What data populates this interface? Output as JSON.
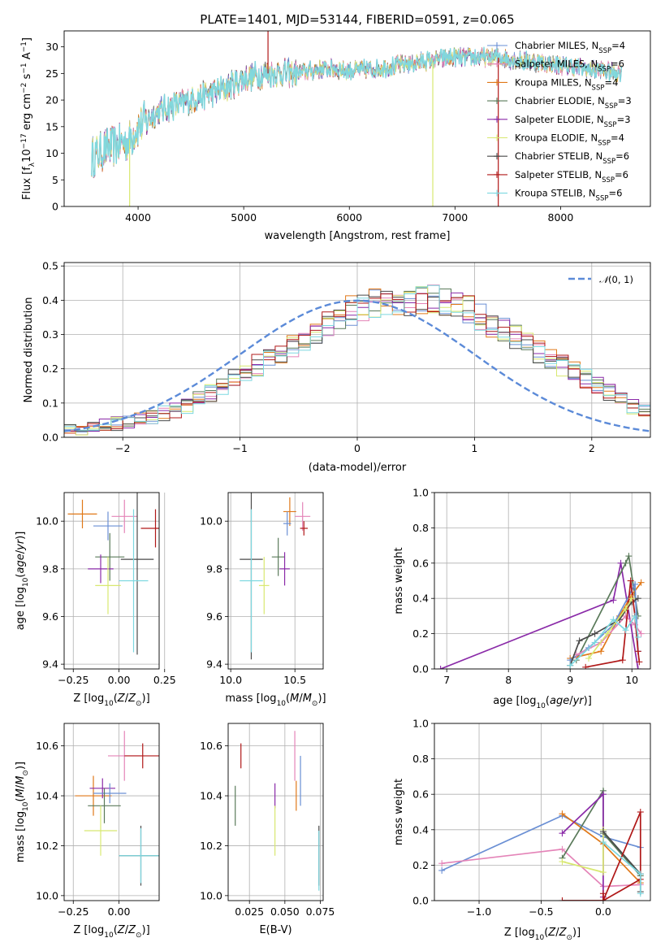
{
  "figure": {
    "title": "PLATE=1401, MJD=53144, FIBERID=0591, z=0.065"
  },
  "colors": {
    "chabrier_miles": "#6a8fd4",
    "salpeter_miles": "#e484b8",
    "kroupa_miles": "#e07818",
    "chabrier_elodie": "#5a7a5a",
    "salpeter_elodie": "#8a2aa8",
    "kroupa_elodie": "#d8e870",
    "chabrier_stelib": "#4a4a4a",
    "salpeter_stelib": "#b01818",
    "kroupa_stelib": "#7dd8e0",
    "normal_curve": "#5b8ad8",
    "grid": "#b0b0b0"
  },
  "chart_data": [
    {
      "id": "spectrum",
      "type": "line",
      "xlabel": "wavelength [Angstrom, rest frame]",
      "ylabel": "Flux [f_λ10^-17 erg cm^-2 s^-1 A^-1]",
      "xlim": [
        3300,
        8850
      ],
      "ylim": [
        0,
        33
      ],
      "xticks": [
        "4000",
        "5000",
        "6000",
        "7000",
        "8000"
      ],
      "yticks": [
        "0",
        "5",
        "10",
        "15",
        "20",
        "25",
        "30"
      ],
      "grid": false,
      "legend_position": "top-right",
      "continuum": {
        "x": [
          3550,
          3700,
          3900,
          4000,
          4200,
          4500,
          4800,
          5000,
          5200,
          5500,
          5800,
          6000,
          6300,
          6600,
          7000,
          7400,
          7800,
          8200,
          8600
        ],
        "y": [
          9,
          11,
          12,
          15,
          18,
          20,
          22,
          24,
          25,
          25,
          26,
          25.5,
          26,
          27,
          28,
          28,
          27,
          26,
          25
        ]
      },
      "series": [
        {
          "label": "Chabrier MILES, N_SSP=4",
          "key": "chabrier_miles",
          "marker": "+"
        },
        {
          "label": "Salpeter MILES, N_SSP=6",
          "key": "salpeter_miles",
          "marker": "+"
        },
        {
          "label": "Kroupa MILES, N_SSP=4",
          "key": "kroupa_miles",
          "marker": "+"
        },
        {
          "label": "Chabrier ELODIE, N_SSP=3",
          "key": "chabrier_elodie",
          "marker": "+"
        },
        {
          "label": "Salpeter ELODIE, N_SSP=3",
          "key": "salpeter_elodie",
          "marker": "+"
        },
        {
          "label": "Kroupa ELODIE, N_SSP=4",
          "key": "kroupa_elodie",
          "marker": "+"
        },
        {
          "label": "Chabrier STELIB, N_SSP=6",
          "key": "chabrier_stelib",
          "marker": "+"
        },
        {
          "label": "Salpeter STELIB, N_SSP=6",
          "key": "salpeter_stelib",
          "marker": "+"
        },
        {
          "label": "Kroupa STELIB, N_SSP=6",
          "key": "kroupa_stelib",
          "marker": "+"
        }
      ]
    },
    {
      "id": "residuals",
      "type": "histogram",
      "xlabel": "(data-model)/error",
      "ylabel": "Normed distribution",
      "xlim": [
        -2.5,
        2.5
      ],
      "ylim": [
        0,
        0.51
      ],
      "xticks": [
        "−2",
        "−1",
        "0",
        "1",
        "2"
      ],
      "yticks": [
        "0.0",
        "0.1",
        "0.2",
        "0.3",
        "0.4",
        "0.5"
      ],
      "grid": true,
      "legend_position": "top-right",
      "normal_label": "N(0,1)",
      "bin_edges_start": -2.5,
      "bin_width": 0.1,
      "base": [
        0.02,
        0.025,
        0.03,
        0.035,
        0.04,
        0.045,
        0.05,
        0.06,
        0.07,
        0.08,
        0.09,
        0.11,
        0.13,
        0.15,
        0.17,
        0.19,
        0.21,
        0.23,
        0.25,
        0.27,
        0.29,
        0.31,
        0.33,
        0.35,
        0.37,
        0.38,
        0.39,
        0.4,
        0.4,
        0.4,
        0.4,
        0.4,
        0.39,
        0.38,
        0.37,
        0.35,
        0.33,
        0.31,
        0.29,
        0.27,
        0.25,
        0.23,
        0.21,
        0.19,
        0.17,
        0.15,
        0.13,
        0.11,
        0.09,
        0.08,
        0.07,
        0.06,
        0.05,
        0.045,
        0.04,
        0.035,
        0.03,
        0.03,
        0.025,
        0.025
      ]
    },
    {
      "id": "age_vs_Z",
      "type": "errorbar",
      "xlabel": "Z [log10(Z/Z☉)]",
      "ylabel": "age [log10(age/yr)]",
      "xlim": [
        -0.3,
        0.22
      ],
      "ylim": [
        9.38,
        10.12
      ],
      "xticks": [
        "−0.25",
        "0.00",
        "0.25"
      ],
      "yticks": [
        "9.4",
        "9.6",
        "9.8",
        "10.0"
      ],
      "grid": true,
      "points": [
        {
          "key": "kroupa_miles",
          "x": -0.2,
          "xe": 0.08,
          "y": 10.03,
          "ye": 0.06
        },
        {
          "key": "chabrier_miles",
          "x": -0.06,
          "xe": 0.08,
          "y": 9.98,
          "ye": 0.06
        },
        {
          "key": "salpeter_miles",
          "x": 0.03,
          "xe": 0.07,
          "y": 10.02,
          "ye": 0.07
        },
        {
          "key": "salpeter_stelib",
          "x": 0.2,
          "xe": 0.08,
          "y": 9.97,
          "ye": 0.08
        },
        {
          "key": "chabrier_elodie",
          "x": -0.05,
          "xe": 0.08,
          "y": 9.85,
          "ye": 0.1
        },
        {
          "key": "chabrier_stelib",
          "x": 0.1,
          "xe": 0.09,
          "y": 9.84,
          "ye": 0.4
        },
        {
          "key": "salpeter_elodie",
          "x": -0.1,
          "xe": 0.07,
          "y": 9.8,
          "ye": 0.06
        },
        {
          "key": "kroupa_elodie",
          "x": -0.06,
          "xe": 0.07,
          "y": 9.73,
          "ye": 0.12
        },
        {
          "key": "kroupa_stelib",
          "x": 0.08,
          "xe": 0.08,
          "y": 9.75,
          "ye": 0.3
        }
      ]
    },
    {
      "id": "age_vs_mass",
      "type": "errorbar",
      "xlabel": "mass [log10(M/M☉)]",
      "ylabel": "",
      "xlim": [
        9.98,
        10.72
      ],
      "ylim": [
        9.38,
        10.12
      ],
      "xticks": [
        "10.0",
        "10.5"
      ],
      "yticks": [
        "9.4",
        "9.6",
        "9.8",
        "10.0"
      ],
      "grid": true,
      "points": [
        {
          "key": "kroupa_miles",
          "x": 10.46,
          "xe": 0.05,
          "y": 10.04,
          "ye": 0.06
        },
        {
          "key": "chabrier_miles",
          "x": 10.44,
          "xe": 0.03,
          "y": 9.99,
          "ye": 0.05
        },
        {
          "key": "salpeter_miles",
          "x": 10.56,
          "xe": 0.06,
          "y": 10.02,
          "ye": 0.06
        },
        {
          "key": "salpeter_stelib",
          "x": 10.57,
          "xe": 0.03,
          "y": 9.97,
          "ye": 0.03
        },
        {
          "key": "chabrier_elodie",
          "x": 10.37,
          "xe": 0.05,
          "y": 9.85,
          "ye": 0.08
        },
        {
          "key": "chabrier_stelib",
          "x": 10.16,
          "xe": 0.09,
          "y": 9.84,
          "ye": 0.42
        },
        {
          "key": "salpeter_elodie",
          "x": 10.42,
          "xe": 0.04,
          "y": 9.8,
          "ye": 0.07
        },
        {
          "key": "kroupa_elodie",
          "x": 10.26,
          "xe": 0.04,
          "y": 9.73,
          "ye": 0.12
        },
        {
          "key": "kroupa_stelib",
          "x": 10.16,
          "xe": 0.09,
          "y": 9.75,
          "ye": 0.3
        }
      ]
    },
    {
      "id": "weight_vs_age",
      "type": "line",
      "xlabel": "age [log10(age/yr)]",
      "ylabel": "mass weight",
      "xlim": [
        6.8,
        10.3
      ],
      "ylim": [
        0,
        1.0
      ],
      "xticks": [
        "7",
        "8",
        "9",
        "10"
      ],
      "yticks": [
        "0.0",
        "0.2",
        "0.4",
        "0.6",
        "0.8",
        "1.0"
      ],
      "grid": true,
      "series": [
        {
          "key": "salpeter_elodie",
          "x": [
            6.9,
            9.7,
            9.82,
            10.1
          ],
          "y": [
            0.0,
            0.39,
            0.6,
            0.0
          ]
        },
        {
          "key": "chabrier_elodie",
          "x": [
            9.1,
            9.9,
            9.95,
            10.1
          ],
          "y": [
            0.05,
            0.6,
            0.64,
            0.3
          ]
        },
        {
          "key": "kroupa_miles",
          "x": [
            9.0,
            9.5,
            9.8,
            10.0,
            10.15
          ],
          "y": [
            0.06,
            0.1,
            0.3,
            0.42,
            0.49
          ]
        },
        {
          "key": "chabrier_miles",
          "x": [
            9.0,
            9.3,
            9.7,
            10.05,
            10.1
          ],
          "y": [
            0.05,
            0.12,
            0.25,
            0.48,
            0.1
          ]
        },
        {
          "key": "salpeter_miles",
          "x": [
            9.1,
            9.5,
            9.9,
            10.05,
            10.15
          ],
          "y": [
            0.08,
            0.15,
            0.3,
            0.25,
            0.2
          ]
        },
        {
          "key": "chabrier_stelib",
          "x": [
            9.0,
            9.15,
            9.4,
            9.8,
            10.0,
            10.1
          ],
          "y": [
            0.02,
            0.16,
            0.2,
            0.28,
            0.38,
            0.4
          ]
        },
        {
          "key": "salpeter_stelib",
          "x": [
            9.25,
            9.85,
            9.98,
            10.05,
            10.1,
            10.12
          ],
          "y": [
            0.01,
            0.05,
            0.5,
            0.3,
            0.1,
            0.04
          ]
        },
        {
          "key": "kroupa_elodie",
          "x": [
            9.3,
            9.6,
            9.9,
            10.0
          ],
          "y": [
            0.06,
            0.2,
            0.34,
            0.4
          ]
        },
        {
          "key": "kroupa_stelib",
          "x": [
            9.0,
            9.4,
            9.7,
            9.9,
            10.05,
            10.1
          ],
          "y": [
            0.02,
            0.15,
            0.28,
            0.22,
            0.3,
            0.18
          ]
        }
      ]
    },
    {
      "id": "mass_vs_Z",
      "type": "errorbar",
      "xlabel": "Z [log10(Z/Z☉)]",
      "ylabel": "mass [log10(M/M☉)]",
      "xlim": [
        -0.3,
        0.22
      ],
      "ylim": [
        9.98,
        10.69
      ],
      "xticks": [
        "−0.25",
        "0.00"
      ],
      "yticks": [
        "10.0",
        "10.2",
        "10.4",
        "10.6"
      ],
      "grid": true,
      "points": [
        {
          "key": "salpeter_miles",
          "x": 0.03,
          "xe": 0.09,
          "y": 10.56,
          "ye": 0.1
        },
        {
          "key": "salpeter_stelib",
          "x": 0.13,
          "xe": 0.1,
          "y": 10.56,
          "ye": 0.05
        },
        {
          "key": "kroupa_miles",
          "x": -0.14,
          "xe": 0.1,
          "y": 10.4,
          "ye": 0.08
        },
        {
          "key": "salpeter_elodie",
          "x": -0.09,
          "xe": 0.07,
          "y": 10.43,
          "ye": 0.04
        },
        {
          "key": "chabrier_miles",
          "x": -0.05,
          "xe": 0.09,
          "y": 10.41,
          "ye": 0.04
        },
        {
          "key": "chabrier_elodie",
          "x": -0.08,
          "xe": 0.09,
          "y": 10.36,
          "ye": 0.07
        },
        {
          "key": "kroupa_elodie",
          "x": -0.1,
          "xe": 0.09,
          "y": 10.26,
          "ye": 0.1
        },
        {
          "key": "chabrier_stelib",
          "x": 0.12,
          "xe": 0.12,
          "y": 10.16,
          "ye": 0.12
        },
        {
          "key": "kroupa_stelib",
          "x": 0.12,
          "xe": 0.12,
          "y": 10.16,
          "ye": 0.11
        }
      ]
    },
    {
      "id": "mass_vs_ebv",
      "type": "errorbar",
      "xlabel": "E(B-V)",
      "ylabel": "",
      "xlim": [
        0.01,
        0.077
      ],
      "ylim": [
        9.98,
        10.69
      ],
      "xticks": [
        "0.025",
        "0.050",
        "0.075"
      ],
      "yticks": [
        "10.0",
        "10.2",
        "10.4",
        "10.6"
      ],
      "grid": true,
      "points": [
        {
          "key": "salpeter_stelib",
          "x": 0.019,
          "xe": 0,
          "y": 10.56,
          "ye": 0.05
        },
        {
          "key": "chabrier_elodie",
          "x": 0.015,
          "xe": 0,
          "y": 10.36,
          "ye": 0.08
        },
        {
          "key": "salpeter_elodie",
          "x": 0.043,
          "xe": 0,
          "y": 10.4,
          "ye": 0.05
        },
        {
          "key": "kroupa_elodie",
          "x": 0.043,
          "xe": 0,
          "y": 10.26,
          "ye": 0.1
        },
        {
          "key": "salpeter_miles",
          "x": 0.057,
          "xe": 0,
          "y": 10.56,
          "ye": 0.1
        },
        {
          "key": "kroupa_miles",
          "x": 0.058,
          "xe": 0,
          "y": 10.4,
          "ye": 0.06
        },
        {
          "key": "chabrier_miles",
          "x": 0.061,
          "xe": 0,
          "y": 10.46,
          "ye": 0.1
        },
        {
          "key": "chabrier_stelib",
          "x": 0.074,
          "xe": 0,
          "y": 10.16,
          "ye": 0.12
        },
        {
          "key": "kroupa_stelib",
          "x": 0.074,
          "xe": 0,
          "y": 10.14,
          "ye": 0.12
        }
      ]
    },
    {
      "id": "weight_vs_Z",
      "type": "line",
      "xlabel": "Z [log10(Z/Z☉)]",
      "ylabel": "mass weight",
      "xlim": [
        -1.36,
        0.38
      ],
      "ylim": [
        0,
        1.0
      ],
      "xticks": [
        "−1.0",
        "−0.5",
        "0.0"
      ],
      "yticks": [
        "0.0",
        "0.2",
        "0.4",
        "0.6",
        "0.8",
        "1.0"
      ],
      "grid": true,
      "series": [
        {
          "key": "chabrier_miles",
          "x": [
            -1.3,
            -0.33,
            0.0,
            0.3
          ],
          "y": [
            0.17,
            0.48,
            0.36,
            0.3
          ]
        },
        {
          "key": "salpeter_miles",
          "x": [
            -1.3,
            -0.33,
            0.0,
            0.3
          ],
          "y": [
            0.21,
            0.29,
            0.08,
            0.09
          ]
        },
        {
          "key": "kroupa_miles",
          "x": [
            -0.33,
            0.0,
            0.3
          ],
          "y": [
            0.49,
            0.32,
            0.1
          ]
        },
        {
          "key": "chabrier_elodie",
          "x": [
            -0.33,
            0.0,
            0.0,
            0.3
          ],
          "y": [
            0.24,
            0.62,
            0.38,
            0.14
          ]
        },
        {
          "key": "salpeter_elodie",
          "x": [
            -0.33,
            0.0,
            0.0
          ],
          "y": [
            0.38,
            0.6,
            0.02
          ]
        },
        {
          "key": "kroupa_elodie",
          "x": [
            -0.33,
            0.0,
            0.0
          ],
          "y": [
            0.22,
            0.16,
            0.4
          ]
        },
        {
          "key": "chabrier_stelib",
          "x": [
            0.0,
            0.3,
            0.3
          ],
          "y": [
            0.39,
            0.15,
            0.05
          ]
        },
        {
          "key": "salpeter_stelib",
          "x": [
            -0.33,
            0.0,
            0.3,
            0.3,
            0.0,
            0.0
          ],
          "y": [
            0.0,
            0.0,
            0.5,
            0.12,
            0.0,
            0.04
          ]
        },
        {
          "key": "kroupa_stelib",
          "x": [
            0.0,
            0.3,
            0.3
          ],
          "y": [
            0.33,
            0.15,
            0.04
          ]
        }
      ]
    }
  ]
}
